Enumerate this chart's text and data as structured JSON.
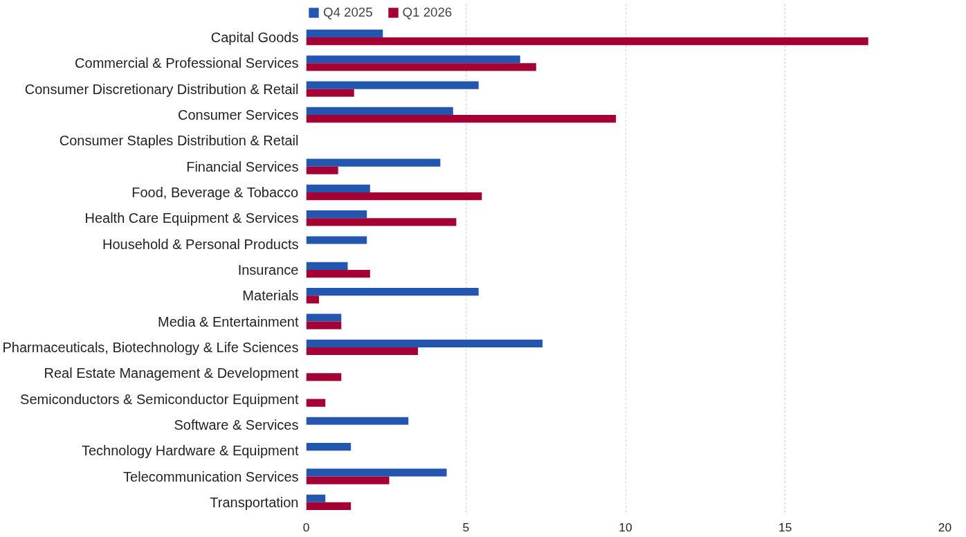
{
  "chart_data": {
    "type": "bar",
    "orientation": "horizontal",
    "categories": [
      "Capital Goods",
      "Commercial & Professional Services",
      "Consumer Discretionary Distribution & Retail",
      "Consumer Services",
      "Consumer Staples Distribution & Retail",
      "Financial Services",
      "Food, Beverage & Tobacco",
      "Health Care Equipment & Services",
      "Household & Personal Products",
      "Insurance",
      "Materials",
      "Media & Entertainment",
      "Pharmaceuticals, Biotechnology & Life Sciences",
      "Real Estate Management & Development",
      "Semiconductors & Semiconductor Equipment",
      "Software & Services",
      "Technology Hardware & Equipment",
      "Telecommunication Services",
      "Transportation"
    ],
    "series": [
      {
        "name": "Q4 2025",
        "color": "#2356b0",
        "values": [
          2.4,
          6.7,
          5.4,
          4.6,
          null,
          4.2,
          2.0,
          1.9,
          1.9,
          1.3,
          5.4,
          1.1,
          7.4,
          null,
          null,
          3.2,
          1.4,
          4.4,
          0.6
        ]
      },
      {
        "name": "Q1 2026",
        "color": "#a50034",
        "values": [
          17.6,
          7.2,
          1.5,
          9.7,
          null,
          1.0,
          5.5,
          4.7,
          null,
          2.0,
          0.4,
          1.1,
          3.5,
          1.1,
          0.6,
          null,
          null,
          2.6,
          1.4
        ]
      }
    ],
    "xlim": [
      0,
      20
    ],
    "xticks": [
      0,
      5,
      10,
      15,
      20
    ],
    "grid": "x",
    "legend": "top"
  }
}
